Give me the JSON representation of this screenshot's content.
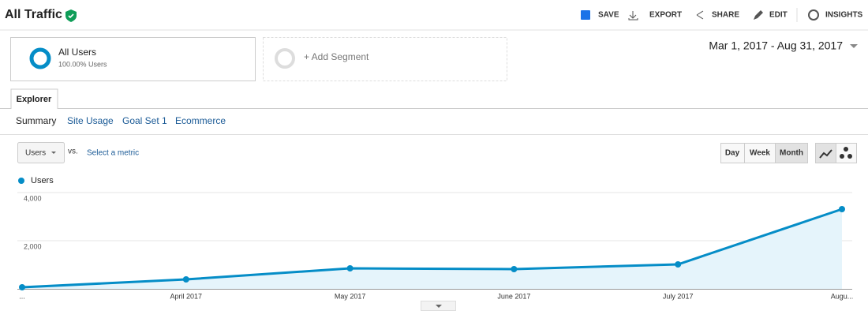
{
  "header": {
    "title": "All Traffic",
    "actions": [
      "SAVE",
      "EXPORT",
      "SHARE",
      "EDIT",
      "INSIGHTS"
    ]
  },
  "segments": {
    "active": {
      "name": "All Users",
      "detail": "100.00% Users"
    },
    "add": "+ Add Segment"
  },
  "date_range": "Mar 1, 2017 - Aug 31, 2017",
  "tab": "Explorer",
  "subtabs": [
    "Summary",
    "Site Usage",
    "Goal Set 1",
    "Ecommerce"
  ],
  "controls": {
    "metric": "Users",
    "vs": "vs.",
    "select": "Select a metric",
    "periods": [
      "Day",
      "Week",
      "Month"
    ]
  },
  "chart_data": {
    "type": "line",
    "categories": [
      "...",
      "April 2017",
      "May 2017",
      "June 2017",
      "July 2017",
      "Augu..."
    ],
    "series": [
      {
        "name": "Users",
        "color": "#058dc7",
        "values": [
          66,
          393,
          852,
          820,
          1016,
          3311
        ]
      }
    ],
    "ylim": [
      0,
      4000
    ],
    "yticks": [
      {
        "value": 2000,
        "label": "2,000"
      },
      {
        "value": 4000,
        "label": "4,000"
      }
    ],
    "grid": true,
    "area": true,
    "area_color": "#e5f4fb"
  }
}
